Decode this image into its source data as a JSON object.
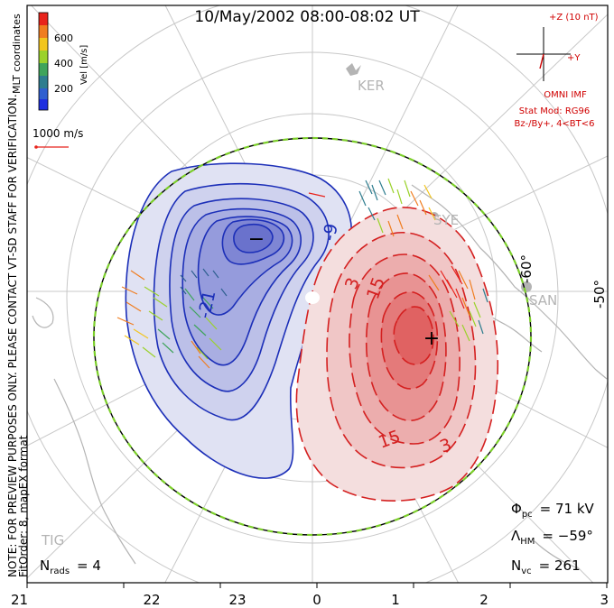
{
  "title": "10/May/2002 08:00-08:02 UT",
  "colorbar": {
    "ticks": [
      "600",
      "400",
      "200"
    ],
    "label": "Vel [m/s]",
    "colors": [
      "#e8231c",
      "#f07d20",
      "#f2c51e",
      "#9bd22c",
      "#3fa45b",
      "#2e7d8f",
      "#2f5fd0",
      "#1f2fe0"
    ]
  },
  "coord_label": "MLT coordinates",
  "ref_vector_label": "1000 m/s",
  "imf": {
    "z_label": "+Z (10 nT)",
    "y_label": "+Y",
    "source": "OMNI IMF",
    "model": "Stat Mod: RG96",
    "condition": "Bz-/By+, 4<BT<6"
  },
  "note": {
    "line1": "NOTE: FOR PREVIEW PURPOSES ONLY. PLEASE CONTACT VT-SD STAFF FOR VERIFICATION.",
    "line2": "FitOrder: 8, mapEX format"
  },
  "stations": [
    "KER",
    "SYE",
    "SAN",
    "TIG"
  ],
  "lat_labels": [
    "-50°",
    "-60°"
  ],
  "contour_labels": {
    "neg": [
      "-21",
      "-9"
    ],
    "pos": [
      "3",
      "15",
      "15",
      "3"
    ]
  },
  "extrema": {
    "min_symbol": "−",
    "max_symbol": "+"
  },
  "stats": {
    "phi_sym": "Φ",
    "phi_sub": "pc",
    "phi_value": "= 71 kV",
    "lambda_sym": "Λ",
    "lambda_sub": "HM",
    "lambda_value": "= −59°",
    "nvc_sym": "N",
    "nvc_sub": "vc",
    "nvc_value": "= 261",
    "nrads_sym": "N",
    "nrads_sub": "rads",
    "nrads_value": "= 4"
  },
  "mlt_ticks": [
    "21",
    "22",
    "23",
    "0",
    "1",
    "2",
    "3"
  ],
  "colors": {
    "negative": "#1c2fb8",
    "positive": "#d42020",
    "boundary_green": "#7ccf2a",
    "grid": "#c8c8c8",
    "land": "#b4b4b4",
    "text": "#000000",
    "imf": "#d00000"
  }
}
